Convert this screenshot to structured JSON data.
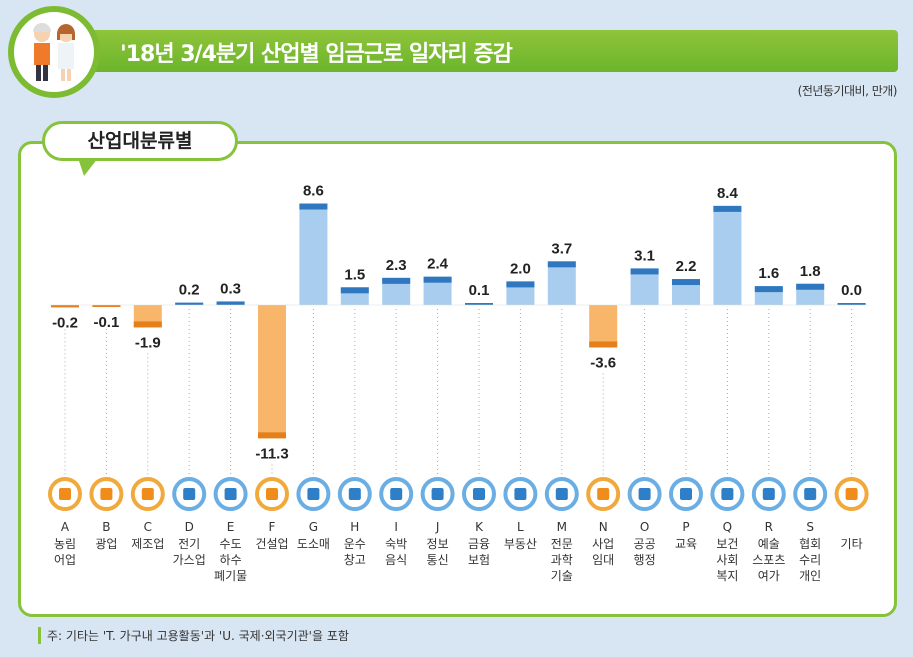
{
  "header": {
    "title": "'18년 3/4분기 산업별 임금근로 일자리 증감",
    "unit": "(전년동기대비, 만개)"
  },
  "section_label": "산업대분류별",
  "note": "주: 기타는 'T. 가구내 고용활동'과 'U. 국제·외국기관'을 포함",
  "colors": {
    "positive": "#a9cdee",
    "positive_cap": "#2f78c0",
    "negative": "#f7b66a",
    "negative_cap": "#e57f1a",
    "green": "#86c23a"
  },
  "chart_data": {
    "type": "bar",
    "title": "'18년 3/4분기 산업별 임금근로 일자리 증감",
    "ylabel": "(전년동기대비, 만개)",
    "categories": [
      {
        "code": "A",
        "name": [
          "농림",
          "어업"
        ],
        "icon": "wheat-icon",
        "value": -0.2
      },
      {
        "code": "B",
        "name": [
          "광업"
        ],
        "icon": "hardhat-icon",
        "value": -0.1
      },
      {
        "code": "C",
        "name": [
          "제조업"
        ],
        "icon": "gears-icon",
        "value": -1.9
      },
      {
        "code": "D",
        "name": [
          "전기",
          "가스업"
        ],
        "icon": "lightning-icon",
        "value": 0.2
      },
      {
        "code": "E",
        "name": [
          "수도",
          "하수",
          "폐기물"
        ],
        "icon": "faucet-icon",
        "value": 0.3
      },
      {
        "code": "F",
        "name": [
          "건설업"
        ],
        "icon": "excavator-icon",
        "value": -11.3
      },
      {
        "code": "G",
        "name": [
          "도소매"
        ],
        "icon": "basket-icon",
        "value": 8.6
      },
      {
        "code": "H",
        "name": [
          "운수",
          "창고"
        ],
        "icon": "truck-icon",
        "value": 1.5
      },
      {
        "code": "I",
        "name": [
          "숙박",
          "음식"
        ],
        "icon": "dining-icon",
        "value": 2.3
      },
      {
        "code": "J",
        "name": [
          "정보",
          "통신"
        ],
        "icon": "phone-icon",
        "value": 2.4
      },
      {
        "code": "K",
        "name": [
          "금융",
          "보험"
        ],
        "icon": "laptop-won-icon",
        "value": 0.1
      },
      {
        "code": "L",
        "name": [
          "부동산"
        ],
        "icon": "house-won-icon",
        "value": 2.0
      },
      {
        "code": "M",
        "name": [
          "전문",
          "과학",
          "기술"
        ],
        "icon": "flask-icon",
        "value": 3.7
      },
      {
        "code": "N",
        "name": [
          "사업",
          "임대"
        ],
        "icon": "binoculars-icon",
        "value": -3.6
      },
      {
        "code": "O",
        "name": [
          "공공",
          "행정"
        ],
        "icon": "scroll-icon",
        "value": 3.1
      },
      {
        "code": "P",
        "name": [
          "교육"
        ],
        "icon": "graduation-cap-icon",
        "value": 2.2
      },
      {
        "code": "Q",
        "name": [
          "보건",
          "사회",
          "복지"
        ],
        "icon": "medical-kit-icon",
        "value": 8.4
      },
      {
        "code": "R",
        "name": [
          "예술",
          "스포츠",
          "여가"
        ],
        "icon": "palette-icon",
        "value": 1.6
      },
      {
        "code": "S",
        "name": [
          "협회",
          "수리",
          "개인"
        ],
        "icon": "people-icon",
        "value": 1.8
      },
      {
        "code": "",
        "name": [
          "기타"
        ],
        "icon": "document-icon",
        "value": 0.0
      }
    ],
    "value_labels": [
      "-0.2",
      "-0.1",
      "-1.9",
      "0.2",
      "0.3",
      "-11.3",
      "8.6",
      "1.5",
      "2.3",
      "2.4",
      "0.1",
      "2.0",
      "3.7",
      "-3.6",
      "3.1",
      "2.2",
      "8.4",
      "1.6",
      "1.8",
      "0.0"
    ],
    "grid": false,
    "legend": "none"
  }
}
